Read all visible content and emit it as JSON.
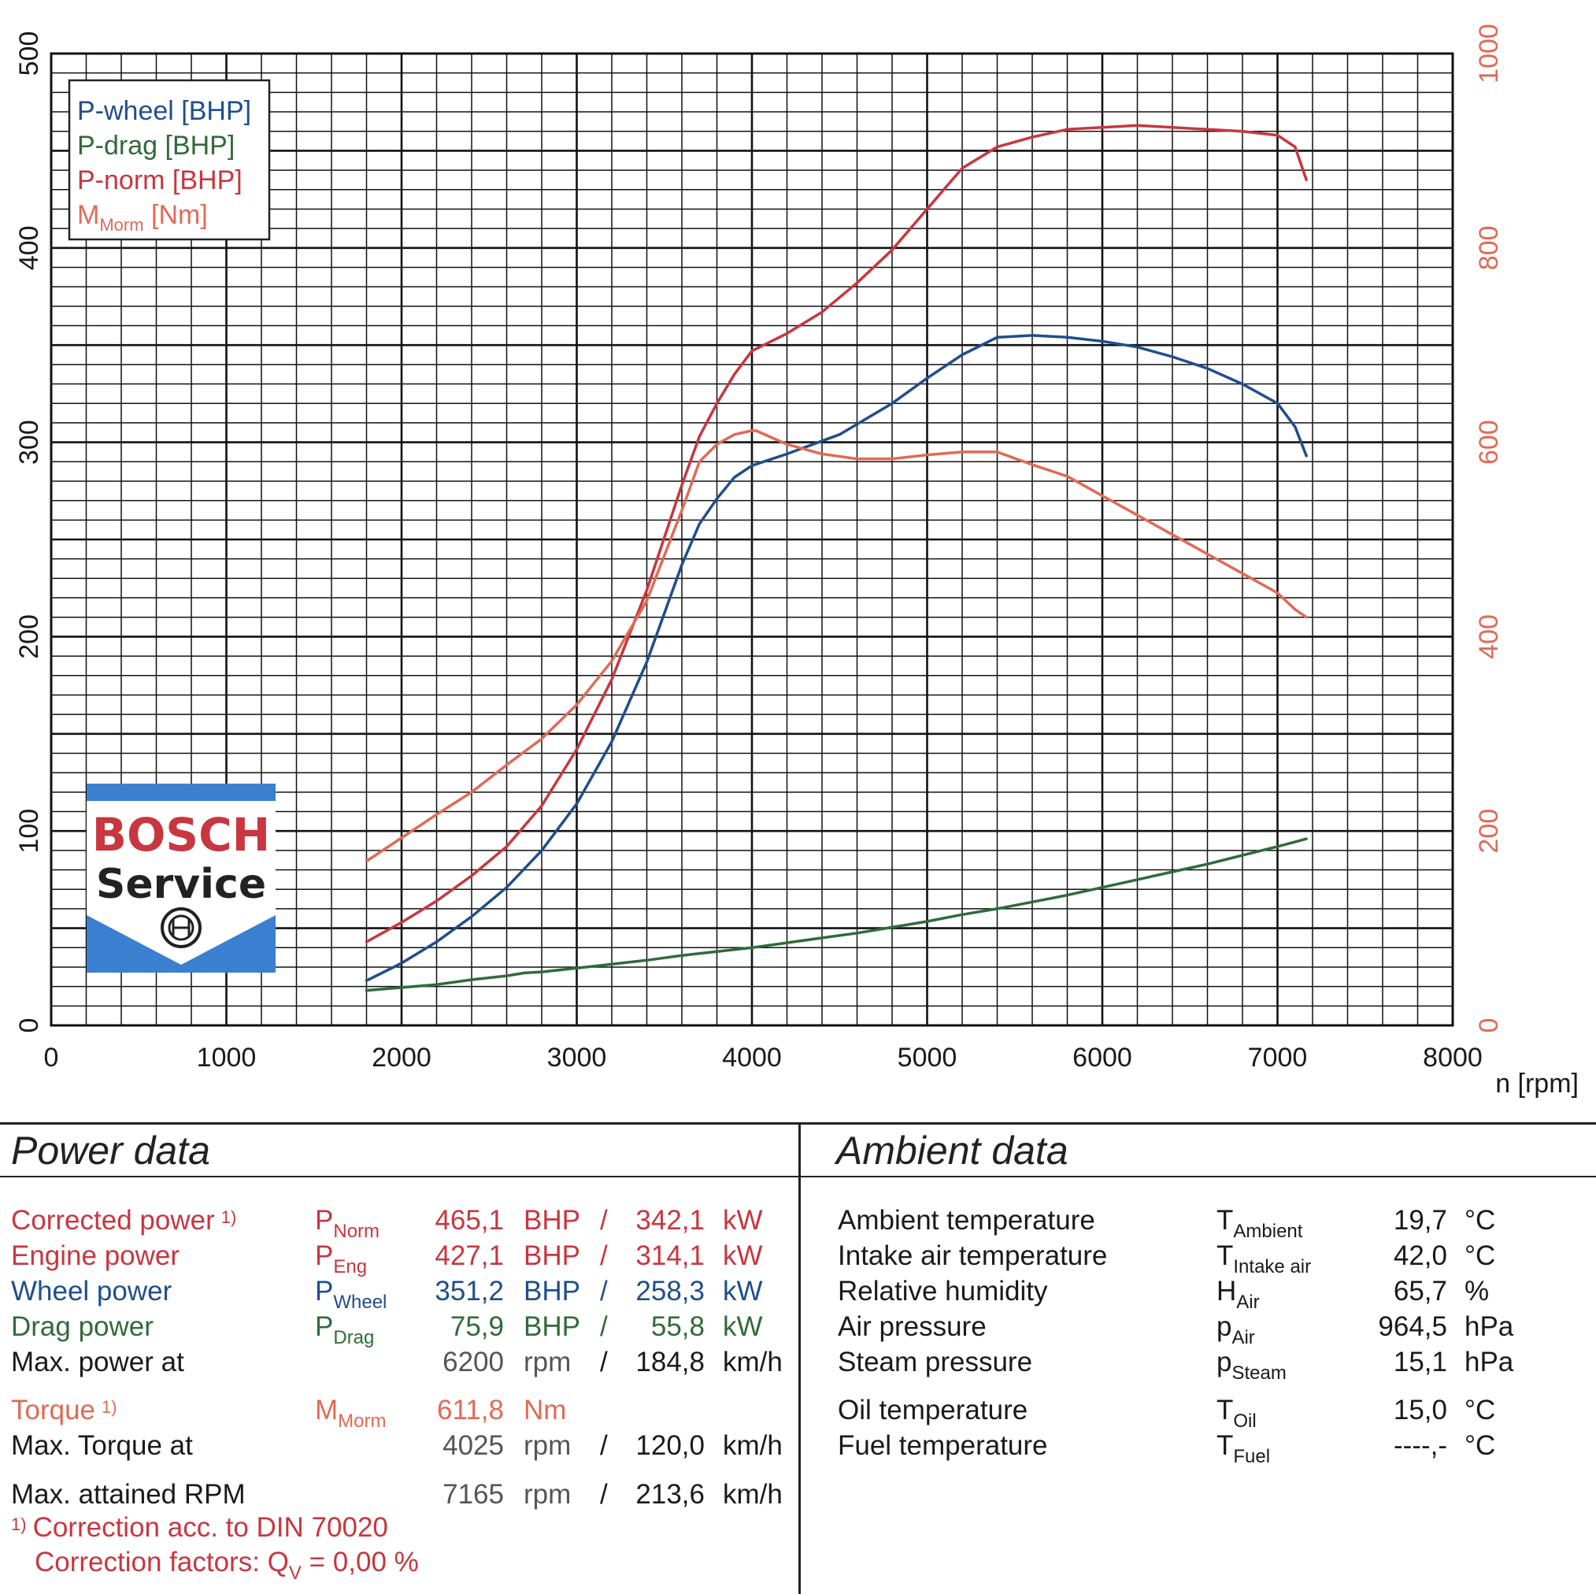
{
  "chart_data": {
    "type": "line",
    "xlabel": "n [rpm]",
    "xlim": [
      0,
      8000
    ],
    "xticks": [
      0,
      1000,
      2000,
      3000,
      4000,
      5000,
      6000,
      7000,
      8000
    ],
    "ylim_left": [
      0,
      500
    ],
    "yticks_left": [
      0,
      100,
      200,
      300,
      400,
      500
    ],
    "ylim_right": [
      0,
      1000
    ],
    "yticks_right": [
      0,
      200,
      400,
      600,
      800,
      1000
    ],
    "grid": true,
    "legend_position": "top-left",
    "legend": [
      {
        "text": "P-wheel [BHP]",
        "sub": "",
        "suffix": ""
      },
      {
        "text": "P-drag [BHP]",
        "sub": "",
        "suffix": ""
      },
      {
        "text": "P-norm [BHP]",
        "sub": "",
        "suffix": ""
      },
      {
        "text": "M",
        "sub": "Morm",
        "suffix": " [Nm]"
      }
    ],
    "series": [
      {
        "name": "P-wheel [BHP]",
        "axis": "left",
        "color": "#1f4e8c",
        "x": [
          1800,
          2000,
          2200,
          2400,
          2600,
          2800,
          3000,
          3200,
          3400,
          3600,
          3700,
          3800,
          3900,
          4000,
          4200,
          4500,
          4800,
          5000,
          5200,
          5400,
          5600,
          5800,
          6000,
          6200,
          6400,
          6600,
          6800,
          7000,
          7100,
          7165
        ],
        "y": [
          23,
          32,
          43,
          56,
          71,
          90,
          114,
          146,
          187,
          237,
          258,
          271,
          282,
          288,
          294,
          304,
          320,
          333,
          345,
          354,
          355,
          354,
          352,
          349,
          344,
          338,
          330,
          320,
          308,
          293
        ]
      },
      {
        "name": "P-drag [BHP]",
        "axis": "left",
        "color": "#2f6b3a",
        "x": [
          1800,
          2000,
          2200,
          2400,
          2600,
          2700,
          2800,
          3000,
          3200,
          3400,
          3600,
          3800,
          4000,
          4200,
          4400,
          4600,
          4800,
          5000,
          5200,
          5400,
          5600,
          5800,
          6000,
          6200,
          6400,
          6600,
          6800,
          7000,
          7165
        ],
        "y": [
          18,
          19.5,
          21,
          23.5,
          25.5,
          27,
          27.5,
          29.5,
          31.5,
          33.5,
          36,
          38,
          40,
          42.5,
          45,
          47.5,
          50.5,
          53.5,
          57,
          60,
          63.5,
          67,
          71,
          75,
          79,
          83,
          87.5,
          92,
          96
        ]
      },
      {
        "name": "P-norm [BHP]",
        "axis": "left",
        "color": "#c8363f",
        "x": [
          1800,
          2000,
          2200,
          2400,
          2600,
          2800,
          3000,
          3200,
          3400,
          3600,
          3700,
          3800,
          3900,
          4000,
          4200,
          4400,
          4600,
          4800,
          5000,
          5200,
          5400,
          5600,
          5800,
          6000,
          6200,
          6400,
          6600,
          6800,
          7000,
          7100,
          7165
        ],
        "y": [
          43,
          53,
          64,
          77,
          92,
          113,
          142,
          178,
          224,
          278,
          303,
          320,
          335,
          347,
          356,
          367,
          382,
          399,
          420,
          441,
          452,
          457,
          461,
          462,
          463,
          462,
          461,
          460,
          458,
          452,
          435
        ]
      },
      {
        "name": "M_Morm [Nm]",
        "axis": "right",
        "color": "#e06a55",
        "x": [
          1800,
          2000,
          2200,
          2400,
          2600,
          2800,
          3000,
          3200,
          3400,
          3600,
          3700,
          3800,
          3900,
          4000,
          4025,
          4200,
          4400,
          4600,
          4800,
          5000,
          5200,
          5400,
          5600,
          5800,
          6000,
          6200,
          6400,
          6600,
          6800,
          7000,
          7100,
          7165
        ],
        "y": [
          169,
          193,
          217,
          240,
          268,
          295,
          330,
          375,
          437,
          530,
          580,
          598,
          608,
          612,
          611.8,
          598,
          588,
          583,
          583,
          587,
          590,
          590,
          577,
          565,
          545,
          525,
          505,
          485,
          465,
          445,
          428,
          420
        ]
      }
    ]
  },
  "power_data": {
    "title": "Power data",
    "rows": [
      {
        "label": "Corrected power",
        "footnote": "1)",
        "sym": "P",
        "sub": "Norm",
        "v1": "465,1",
        "u1": "BHP",
        "sep": "/",
        "v2": "342,1",
        "u2": "kW",
        "color": "red"
      },
      {
        "label": "Engine power",
        "footnote": "",
        "sym": "P",
        "sub": "Eng",
        "v1": "427,1",
        "u1": "BHP",
        "sep": "/",
        "v2": "314,1",
        "u2": "kW",
        "color": "red"
      },
      {
        "label": "Wheel power",
        "footnote": "",
        "sym": "P",
        "sub": "Wheel",
        "v1": "351,2",
        "u1": "BHP",
        "sep": "/",
        "v2": "258,3",
        "u2": "kW",
        "color": "blue"
      },
      {
        "label": "Drag power",
        "footnote": "",
        "sym": "P",
        "sub": "Drag",
        "v1": "75,9",
        "u1": "BHP",
        "sep": "/",
        "v2": "55,8",
        "u2": "kW",
        "color": "green"
      },
      {
        "label": "Max. power at",
        "footnote": "",
        "sym": "",
        "sub": "",
        "v1": "6200",
        "u1": "rpm",
        "sep": "/",
        "v2": "184,8",
        "u2": "km/h",
        "color": "black"
      },
      {
        "label": "Torque",
        "footnote": "1)",
        "sym": "M",
        "sub": "Morm",
        "v1": "611,8",
        "u1": "Nm",
        "sep": "",
        "v2": "",
        "u2": "",
        "color": "orange"
      },
      {
        "label": "Max. Torque at",
        "footnote": "",
        "sym": "",
        "sub": "",
        "v1": "4025",
        "u1": "rpm",
        "sep": "/",
        "v2": "120,0",
        "u2": "km/h",
        "color": "black"
      },
      {
        "label": "Max. attained RPM",
        "footnote": "",
        "sym": "",
        "sub": "",
        "v1": "7165",
        "u1": "rpm",
        "sep": "/",
        "v2": "213,6",
        "u2": "km/h",
        "color": "black"
      }
    ],
    "footnote_mark": "1)",
    "footnote_line1": "Correction acc. to DIN 70020",
    "footnote_line2_prefix": "Correction factors: Q",
    "footnote_line2_sub": "V",
    "footnote_line2_suffix": " =   0,00 %"
  },
  "ambient_data": {
    "title": "Ambient data",
    "rows": [
      {
        "label": "Ambient temperature",
        "sym": "T",
        "sub": "Ambient",
        "value": "19,7",
        "unit": "°C"
      },
      {
        "label": "Intake air temperature",
        "sym": "T",
        "sub": "Intake air",
        "value": "42,0",
        "unit": "°C"
      },
      {
        "label": "Relative humidity",
        "sym": "H",
        "sub": "Air",
        "value": "65,7",
        "unit": "%"
      },
      {
        "label": "Air pressure",
        "sym": "p",
        "sub": "Air",
        "value": "964,5",
        "unit": "hPa"
      },
      {
        "label": "Steam pressure",
        "sym": "p",
        "sub": "Steam",
        "value": "15,1",
        "unit": "hPa"
      },
      {
        "label": "Oil temperature",
        "sym": "T",
        "sub": "Oil",
        "value": "15,0",
        "unit": "°C"
      },
      {
        "label": "Fuel temperature",
        "sym": "T",
        "sub": "Fuel",
        "value": "----,-",
        "unit": "°C"
      }
    ]
  },
  "logo": {
    "brand": "BOSCH",
    "text": "Service",
    "colors": {
      "blue": "#3a7fd0",
      "red": "#c8363f"
    }
  },
  "colors": {
    "red": "#c8363f",
    "blue": "#1f4e8c",
    "green": "#2f6b3a",
    "orange": "#e06a55"
  }
}
